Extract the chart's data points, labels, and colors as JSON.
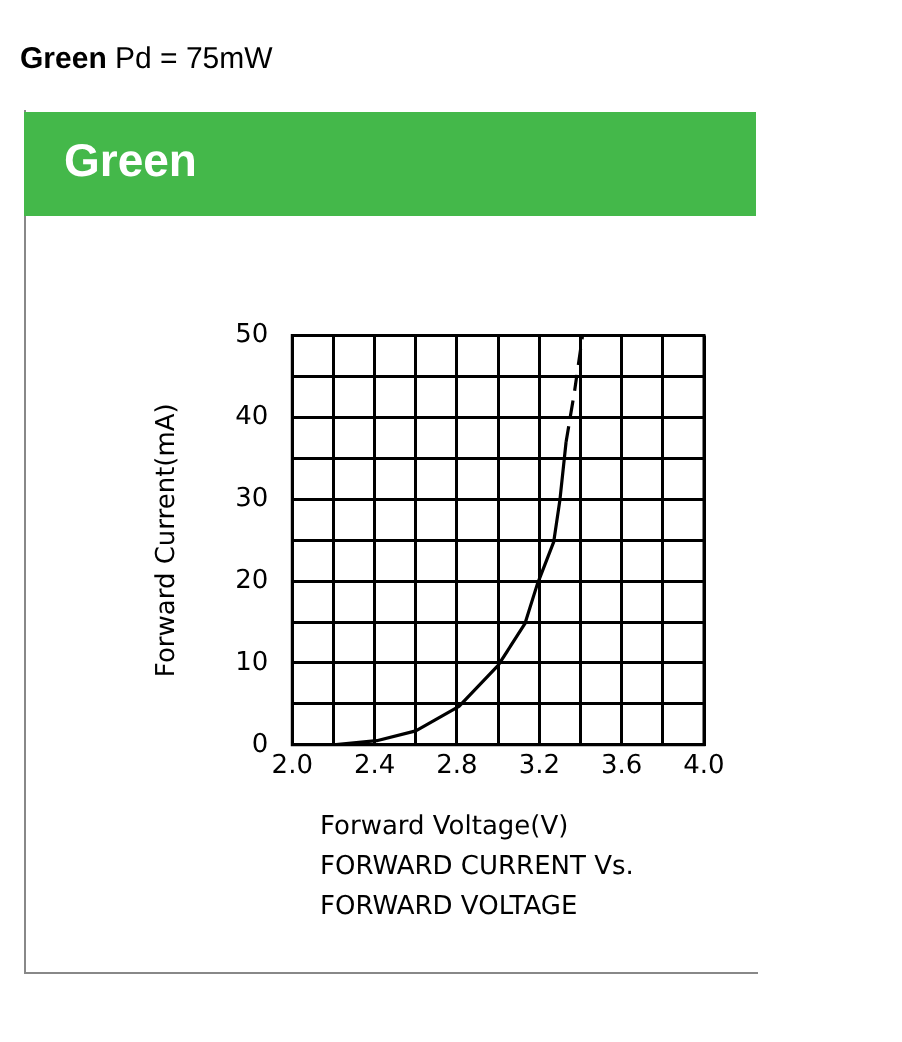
{
  "chart_data": {
    "type": "line",
    "title": "Green Pd = 75mW",
    "subtitle": "Green",
    "xlabel": "Forward Voltage(V)",
    "ylabel": "Forward Current(mA)",
    "annotations": [
      "FORWARD CURRENT Vs.",
      "FORWARD VOLTAGE"
    ],
    "series": [
      {
        "color": "#000000",
        "line_style": "solid",
        "x": [
          2.2,
          2.41,
          2.6,
          2.81,
          3.0,
          3.13,
          3.19,
          3.27,
          3.3,
          3.33
        ],
        "values": [
          0,
          0.5,
          1.7,
          4.7,
          9.7,
          14.8,
          19.6,
          24.8,
          29.9,
          37
        ]
      },
      {
        "color": "#000000",
        "line_style": "dashed",
        "x": [
          3.33,
          3.37,
          3.41
        ],
        "values": [
          37,
          43,
          50
        ]
      }
    ],
    "xlim": [
      2.0,
      4.0
    ],
    "xticks": [
      {
        "value": 2.0,
        "label": "2.0"
      },
      {
        "value": 2.2,
        "label": null
      },
      {
        "value": 2.4,
        "label": "2.4"
      },
      {
        "value": 2.6,
        "label": null
      },
      {
        "value": 2.8,
        "label": "2.8"
      },
      {
        "value": 3.0,
        "label": null
      },
      {
        "value": 3.2,
        "label": "3.2"
      },
      {
        "value": 3.4,
        "label": null
      },
      {
        "value": 3.6,
        "label": "3.6"
      },
      {
        "value": 3.8,
        "label": null
      },
      {
        "value": 4.0,
        "label": "4.0"
      }
    ],
    "ylim": [
      0,
      50
    ],
    "yticks": [
      0,
      {
        "value": 5,
        "label": null
      },
      10,
      {
        "value": 15,
        "label": null
      },
      20,
      {
        "value": 25,
        "label": null
      },
      30,
      {
        "value": 35,
        "label": null
      },
      40,
      {
        "value": 45,
        "label": null
      },
      50
    ],
    "grid": true,
    "legend": false,
    "marker": "none"
  }
}
